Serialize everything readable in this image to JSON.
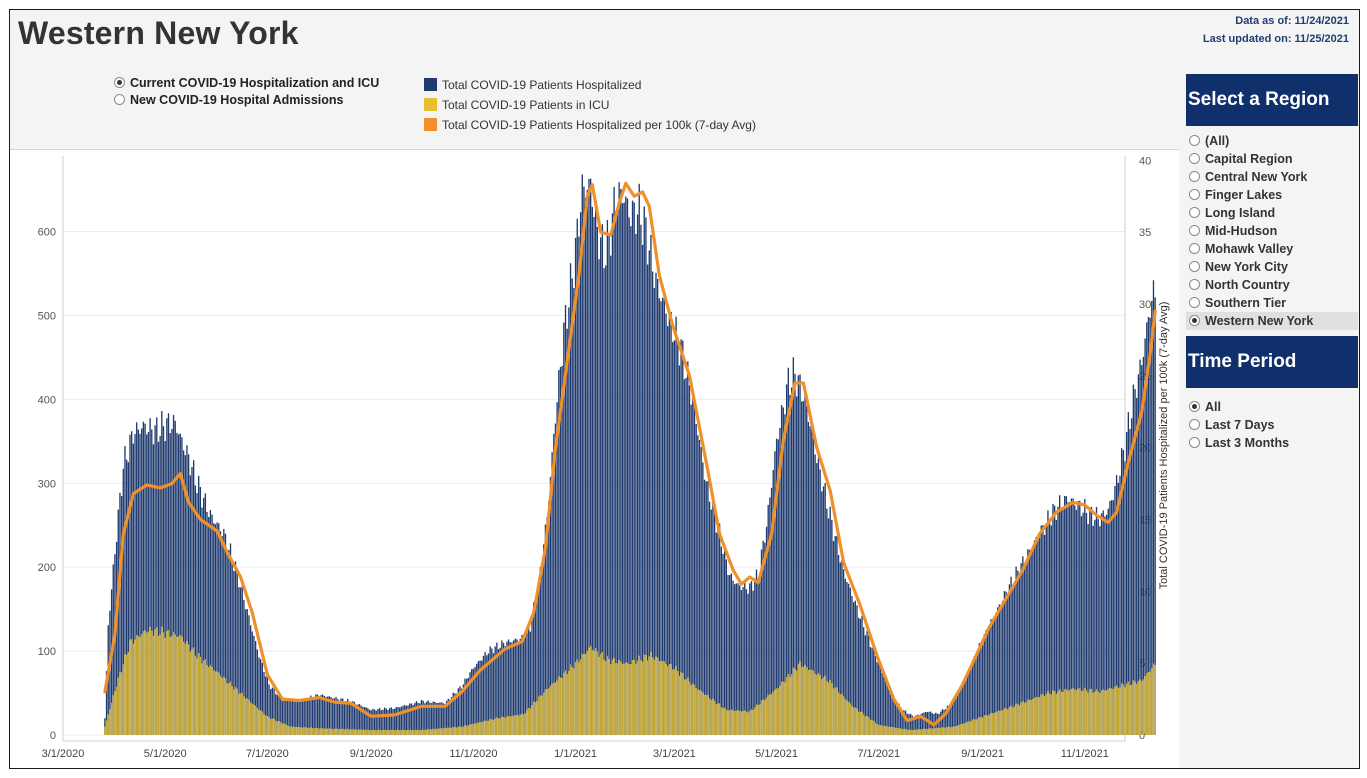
{
  "header": {
    "title": "Western New York",
    "data_as_of": "Data as of: 11/24/2021",
    "last_updated": "Last updated on: 11/25/2021"
  },
  "mode_options": [
    {
      "label": "Current COVID-19 Hospitalization and ICU",
      "selected": true
    },
    {
      "label": "New COVID-19 Hospital Admissions",
      "selected": false
    }
  ],
  "legend": [
    {
      "label": "Total COVID-19 Patients Hospitalized",
      "color": "#1f3a6e"
    },
    {
      "label": "Total COVID-19 Patients in ICU",
      "color": "#e6bf2e"
    },
    {
      "label": "Total COVID-19 Patients Hospitalized per 100k (7-day Avg)",
      "color": "#f0902a"
    }
  ],
  "region_panel": {
    "title": "Select a Region",
    "options": [
      {
        "label": "(All)",
        "selected": false
      },
      {
        "label": "Capital Region",
        "selected": false
      },
      {
        "label": "Central New York",
        "selected": false
      },
      {
        "label": "Finger Lakes",
        "selected": false
      },
      {
        "label": "Long Island",
        "selected": false
      },
      {
        "label": "Mid-Hudson",
        "selected": false
      },
      {
        "label": "Mohawk Valley",
        "selected": false
      },
      {
        "label": "New York City",
        "selected": false
      },
      {
        "label": "North Country",
        "selected": false
      },
      {
        "label": "Southern Tier",
        "selected": false
      },
      {
        "label": "Western New York",
        "selected": true
      }
    ]
  },
  "time_panel": {
    "title": "Time Period",
    "options": [
      {
        "label": "All",
        "selected": true
      },
      {
        "label": "Last 7 Days",
        "selected": false
      },
      {
        "label": "Last 3 Months",
        "selected": false
      }
    ]
  },
  "chart_data": {
    "type": "bar",
    "x_range": [
      "2020-03-01",
      "2021-11-25"
    ],
    "x_ticks": [
      "3/1/2020",
      "5/1/2020",
      "7/1/2020",
      "9/1/2020",
      "11/1/2020",
      "1/1/2021",
      "3/1/2021",
      "5/1/2021",
      "7/1/2021",
      "9/1/2021",
      "11/1/2021"
    ],
    "y_left_ticks": [
      0,
      100,
      200,
      300,
      400,
      500,
      600
    ],
    "ylim_left": [
      0,
      690
    ],
    "y_right_ticks": [
      0,
      5,
      10,
      15,
      20,
      25,
      30,
      35,
      40
    ],
    "ylim_right": [
      0,
      40.3
    ],
    "ylabel_right": "Total COVID-19 Patients Hospitalized per 100k (7-day Avg)",
    "series": [
      {
        "name": "Total COVID-19 Patients Hospitalized",
        "color": "#1f3a6e",
        "axis": "left",
        "points": [
          [
            "2020-03-26",
            20
          ],
          [
            "2020-03-28",
            130
          ],
          [
            "2020-04-02",
            240
          ],
          [
            "2020-04-06",
            320
          ],
          [
            "2020-04-12",
            360
          ],
          [
            "2020-04-18",
            368
          ],
          [
            "2020-04-25",
            362
          ],
          [
            "2020-05-02",
            370
          ],
          [
            "2020-05-07",
            372
          ],
          [
            "2020-05-10",
            355
          ],
          [
            "2020-05-15",
            330
          ],
          [
            "2020-05-20",
            300
          ],
          [
            "2020-05-28",
            262
          ],
          [
            "2020-06-05",
            240
          ],
          [
            "2020-06-12",
            200
          ],
          [
            "2020-06-20",
            140
          ],
          [
            "2020-06-26",
            95
          ],
          [
            "2020-07-02",
            60
          ],
          [
            "2020-07-10",
            42
          ],
          [
            "2020-07-20",
            40
          ],
          [
            "2020-08-01",
            48
          ],
          [
            "2020-08-10",
            44
          ],
          [
            "2020-08-20",
            40
          ],
          [
            "2020-09-01",
            30
          ],
          [
            "2020-09-15",
            32
          ],
          [
            "2020-10-01",
            40
          ],
          [
            "2020-10-15",
            38
          ],
          [
            "2020-10-25",
            58
          ],
          [
            "2020-11-01",
            80
          ],
          [
            "2020-11-10",
            100
          ],
          [
            "2020-11-20",
            110
          ],
          [
            "2020-11-30",
            115
          ],
          [
            "2020-12-05",
            130
          ],
          [
            "2020-12-10",
            180
          ],
          [
            "2020-12-15",
            260
          ],
          [
            "2020-12-20",
            380
          ],
          [
            "2020-12-25",
            480
          ],
          [
            "2020-12-31",
            560
          ],
          [
            "2021-01-05",
            650
          ],
          [
            "2021-01-10",
            655
          ],
          [
            "2021-01-14",
            600
          ],
          [
            "2021-01-18",
            575
          ],
          [
            "2021-01-21",
            590
          ],
          [
            "2021-01-25",
            640
          ],
          [
            "2021-01-29",
            645
          ],
          [
            "2021-02-03",
            620
          ],
          [
            "2021-02-08",
            625
          ],
          [
            "2021-02-12",
            600
          ],
          [
            "2021-02-18",
            540
          ],
          [
            "2021-02-25",
            500
          ],
          [
            "2021-03-05",
            460
          ],
          [
            "2021-03-12",
            400
          ],
          [
            "2021-03-20",
            300
          ],
          [
            "2021-03-28",
            240
          ],
          [
            "2021-04-03",
            190
          ],
          [
            "2021-04-08",
            178
          ],
          [
            "2021-04-15",
            175
          ],
          [
            "2021-04-20",
            190
          ],
          [
            "2021-04-25",
            250
          ],
          [
            "2021-05-01",
            350
          ],
          [
            "2021-05-08",
            420
          ],
          [
            "2021-05-12",
            430
          ],
          [
            "2021-05-18",
            400
          ],
          [
            "2021-05-25",
            330
          ],
          [
            "2021-06-02",
            260
          ],
          [
            "2021-06-10",
            195
          ],
          [
            "2021-06-20",
            140
          ],
          [
            "2021-06-30",
            90
          ],
          [
            "2021-07-08",
            50
          ],
          [
            "2021-07-15",
            30
          ],
          [
            "2021-07-22",
            22
          ],
          [
            "2021-07-30",
            28
          ],
          [
            "2021-08-05",
            25
          ],
          [
            "2021-08-12",
            35
          ],
          [
            "2021-08-20",
            60
          ],
          [
            "2021-08-28",
            95
          ],
          [
            "2021-09-05",
            130
          ],
          [
            "2021-09-15",
            170
          ],
          [
            "2021-09-25",
            205
          ],
          [
            "2021-10-05",
            240
          ],
          [
            "2021-10-15",
            270
          ],
          [
            "2021-10-22",
            282
          ],
          [
            "2021-10-29",
            272
          ],
          [
            "2021-11-05",
            262
          ],
          [
            "2021-11-10",
            258
          ],
          [
            "2021-11-15",
            268
          ],
          [
            "2021-11-20",
            300
          ],
          [
            "2021-11-25",
            345
          ],
          [
            "2021-11-30",
            400
          ],
          [
            "2021-12-05",
            445
          ],
          [
            "2021-12-10",
            510
          ],
          [
            "2021-12-13",
            530
          ]
        ]
      },
      {
        "name": "Total COVID-19 Patients in ICU",
        "color": "#e6bf2e",
        "axis": "left",
        "points": [
          [
            "2020-03-26",
            10
          ],
          [
            "2020-04-02",
            60
          ],
          [
            "2020-04-10",
            110
          ],
          [
            "2020-04-20",
            125
          ],
          [
            "2020-05-01",
            122
          ],
          [
            "2020-05-10",
            118
          ],
          [
            "2020-05-20",
            95
          ],
          [
            "2020-06-01",
            75
          ],
          [
            "2020-06-15",
            50
          ],
          [
            "2020-07-01",
            22
          ],
          [
            "2020-07-15",
            10
          ],
          [
            "2020-08-01",
            8
          ],
          [
            "2020-09-01",
            6
          ],
          [
            "2020-10-01",
            6
          ],
          [
            "2020-10-25",
            10
          ],
          [
            "2020-11-15",
            20
          ],
          [
            "2020-12-01",
            25
          ],
          [
            "2020-12-15",
            55
          ],
          [
            "2021-01-01",
            85
          ],
          [
            "2021-01-10",
            105
          ],
          [
            "2021-01-20",
            90
          ],
          [
            "2021-02-01",
            85
          ],
          [
            "2021-02-15",
            95
          ],
          [
            "2021-03-01",
            80
          ],
          [
            "2021-03-15",
            55
          ],
          [
            "2021-04-01",
            30
          ],
          [
            "2021-04-15",
            28
          ],
          [
            "2021-05-01",
            55
          ],
          [
            "2021-05-15",
            85
          ],
          [
            "2021-06-01",
            65
          ],
          [
            "2021-06-15",
            35
          ],
          [
            "2021-07-01",
            12
          ],
          [
            "2021-07-20",
            6
          ],
          [
            "2021-08-15",
            10
          ],
          [
            "2021-09-01",
            22
          ],
          [
            "2021-09-20",
            35
          ],
          [
            "2021-10-10",
            50
          ],
          [
            "2021-10-25",
            55
          ],
          [
            "2021-11-10",
            52
          ],
          [
            "2021-11-25",
            60
          ],
          [
            "2021-12-05",
            65
          ],
          [
            "2021-12-13",
            85
          ]
        ]
      },
      {
        "name": "Total COVID-19 Patients Hospitalized per 100k (7-day Avg)",
        "color": "#f0902a",
        "axis": "right",
        "type": "line",
        "points": [
          [
            "2020-03-26",
            3.0
          ],
          [
            "2020-04-01",
            7.0
          ],
          [
            "2020-04-06",
            14.0
          ],
          [
            "2020-04-12",
            16.8
          ],
          [
            "2020-04-20",
            17.4
          ],
          [
            "2020-04-28",
            17.2
          ],
          [
            "2020-05-05",
            17.5
          ],
          [
            "2020-05-10",
            18.2
          ],
          [
            "2020-05-15",
            16.2
          ],
          [
            "2020-05-22",
            15.0
          ],
          [
            "2020-06-01",
            14.2
          ],
          [
            "2020-06-08",
            12.5
          ],
          [
            "2020-06-15",
            11.0
          ],
          [
            "2020-06-22",
            8.5
          ],
          [
            "2020-07-01",
            4.2
          ],
          [
            "2020-07-10",
            2.5
          ],
          [
            "2020-07-20",
            2.4
          ],
          [
            "2020-08-01",
            2.6
          ],
          [
            "2020-08-10",
            2.3
          ],
          [
            "2020-08-20",
            2.2
          ],
          [
            "2020-09-01",
            1.3
          ],
          [
            "2020-09-15",
            1.4
          ],
          [
            "2020-10-01",
            2.0
          ],
          [
            "2020-10-15",
            2.0
          ],
          [
            "2020-10-25",
            3.0
          ],
          [
            "2020-11-05",
            4.5
          ],
          [
            "2020-11-20",
            6.0
          ],
          [
            "2020-11-30",
            6.5
          ],
          [
            "2020-12-07",
            8.5
          ],
          [
            "2020-12-14",
            13.0
          ],
          [
            "2020-12-20",
            20.0
          ],
          [
            "2020-12-27",
            26.0
          ],
          [
            "2021-01-03",
            32.0
          ],
          [
            "2021-01-08",
            37.5
          ],
          [
            "2021-01-11",
            38.3
          ],
          [
            "2021-01-16",
            35.0
          ],
          [
            "2021-01-22",
            34.8
          ],
          [
            "2021-01-27",
            37.0
          ],
          [
            "2021-01-31",
            38.4
          ],
          [
            "2021-02-05",
            37.5
          ],
          [
            "2021-02-10",
            37.8
          ],
          [
            "2021-02-14",
            36.8
          ],
          [
            "2021-02-20",
            32.0
          ],
          [
            "2021-02-28",
            28.5
          ],
          [
            "2021-03-10",
            25.0
          ],
          [
            "2021-03-20",
            19.0
          ],
          [
            "2021-03-28",
            14.0
          ],
          [
            "2021-04-05",
            11.5
          ],
          [
            "2021-04-10",
            10.5
          ],
          [
            "2021-04-15",
            11.0
          ],
          [
            "2021-04-20",
            10.6
          ],
          [
            "2021-04-28",
            14.0
          ],
          [
            "2021-05-05",
            20.5
          ],
          [
            "2021-05-12",
            24.5
          ],
          [
            "2021-05-17",
            24.5
          ],
          [
            "2021-05-25",
            20.0
          ],
          [
            "2021-06-02",
            17.0
          ],
          [
            "2021-06-10",
            12.0
          ],
          [
            "2021-06-20",
            9.0
          ],
          [
            "2021-06-30",
            5.5
          ],
          [
            "2021-07-10",
            2.5
          ],
          [
            "2021-07-18",
            1.0
          ],
          [
            "2021-07-26",
            1.3
          ],
          [
            "2021-08-03",
            0.7
          ],
          [
            "2021-08-10",
            1.5
          ],
          [
            "2021-08-20",
            3.5
          ],
          [
            "2021-08-28",
            5.5
          ],
          [
            "2021-09-05",
            7.5
          ],
          [
            "2021-09-15",
            9.5
          ],
          [
            "2021-09-25",
            11.5
          ],
          [
            "2021-10-05",
            14.0
          ],
          [
            "2021-10-15",
            15.5
          ],
          [
            "2021-10-25",
            16.2
          ],
          [
            "2021-11-01",
            16.0
          ],
          [
            "2021-11-08",
            15.3
          ],
          [
            "2021-11-15",
            14.8
          ],
          [
            "2021-11-20",
            15.5
          ],
          [
            "2021-11-27",
            19.0
          ],
          [
            "2021-12-05",
            22.5
          ],
          [
            "2021-12-10",
            26.5
          ],
          [
            "2021-12-13",
            29.5
          ]
        ]
      }
    ]
  }
}
